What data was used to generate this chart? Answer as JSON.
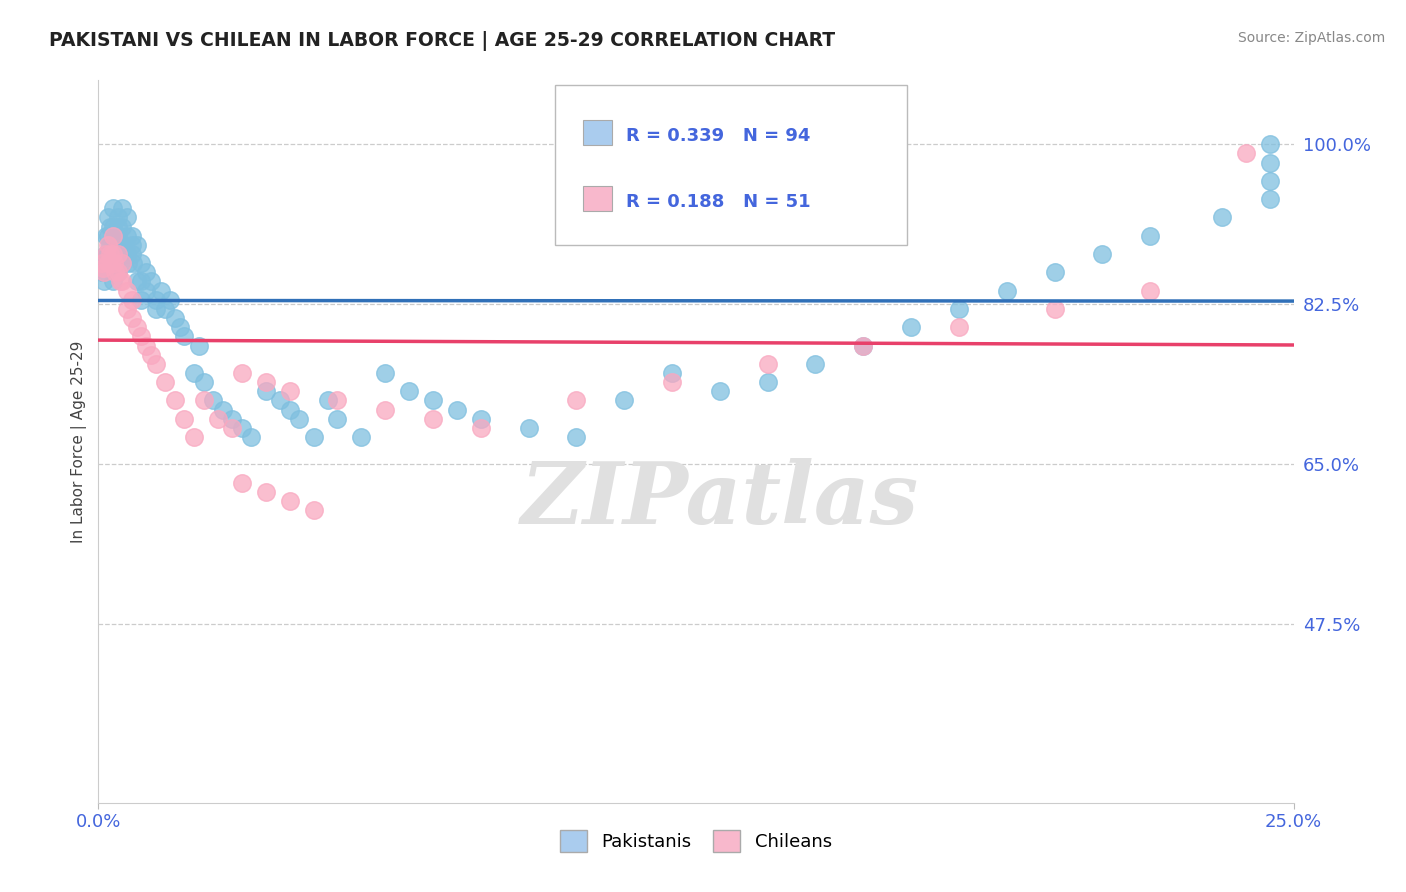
{
  "title": "PAKISTANI VS CHILEAN IN LABOR FORCE | AGE 25-29 CORRELATION CHART",
  "source": "Source: ZipAtlas.com",
  "ylabel": "In Labor Force | Age 25-29",
  "r_pakistani": 0.339,
  "n_pakistani": 94,
  "r_chilean": 0.188,
  "n_chilean": 51,
  "color_pakistani": "#7fbfdf",
  "color_chilean": "#f9a8c0",
  "color_line_pakistani": "#3070b8",
  "color_line_chilean": "#e8406a",
  "title_color": "#222222",
  "tick_color": "#4466dd",
  "source_color": "#888888",
  "xlim": [
    0.0,
    0.25
  ],
  "ylim": [
    0.28,
    1.07
  ],
  "ytick_values": [
    0.475,
    0.65,
    0.825,
    1.0
  ],
  "ytick_labels": [
    "47.5%",
    "65.0%",
    "82.5%",
    "100.0%"
  ],
  "xtick_values": [
    0.0,
    0.25
  ],
  "xtick_labels": [
    "0.0%",
    "25.0%"
  ],
  "background_color": "#ffffff",
  "grid_color": "#cccccc",
  "legend_bg": "#ffffff",
  "legend_edge": "#cccccc",
  "legend_pak_color": "#aaccee",
  "legend_chi_color": "#f8b8cc",
  "watermark_text": "ZIPatlas",
  "watermark_color": "#e0e0e0",
  "pakistani_x": [
    0.0008,
    0.001,
    0.0012,
    0.0015,
    0.0015,
    0.0018,
    0.002,
    0.002,
    0.002,
    0.0022,
    0.0025,
    0.0025,
    0.003,
    0.003,
    0.003,
    0.003,
    0.003,
    0.0032,
    0.0035,
    0.004,
    0.004,
    0.004,
    0.004,
    0.0042,
    0.0045,
    0.005,
    0.005,
    0.005,
    0.005,
    0.0055,
    0.006,
    0.006,
    0.006,
    0.0062,
    0.007,
    0.007,
    0.007,
    0.0072,
    0.008,
    0.008,
    0.009,
    0.009,
    0.009,
    0.01,
    0.01,
    0.011,
    0.012,
    0.012,
    0.013,
    0.014,
    0.015,
    0.016,
    0.017,
    0.018,
    0.02,
    0.021,
    0.022,
    0.024,
    0.026,
    0.028,
    0.03,
    0.032,
    0.035,
    0.038,
    0.04,
    0.042,
    0.045,
    0.048,
    0.05,
    0.055,
    0.06,
    0.065,
    0.07,
    0.075,
    0.08,
    0.09,
    0.1,
    0.11,
    0.12,
    0.13,
    0.14,
    0.15,
    0.16,
    0.17,
    0.18,
    0.19,
    0.2,
    0.21,
    0.22,
    0.235,
    0.245,
    0.245,
    0.245,
    0.245
  ],
  "pakistani_y": [
    0.86,
    0.875,
    0.85,
    0.9,
    0.88,
    0.87,
    0.92,
    0.9,
    0.88,
    0.87,
    0.91,
    0.89,
    0.93,
    0.91,
    0.89,
    0.87,
    0.85,
    0.88,
    0.9,
    0.92,
    0.9,
    0.88,
    0.86,
    0.91,
    0.89,
    0.93,
    0.91,
    0.89,
    0.87,
    0.88,
    0.92,
    0.9,
    0.88,
    0.87,
    0.89,
    0.9,
    0.88,
    0.87,
    0.89,
    0.85,
    0.87,
    0.85,
    0.83,
    0.86,
    0.84,
    0.85,
    0.83,
    0.82,
    0.84,
    0.82,
    0.83,
    0.81,
    0.8,
    0.79,
    0.75,
    0.78,
    0.74,
    0.72,
    0.71,
    0.7,
    0.69,
    0.68,
    0.73,
    0.72,
    0.71,
    0.7,
    0.68,
    0.72,
    0.7,
    0.68,
    0.75,
    0.73,
    0.72,
    0.71,
    0.7,
    0.69,
    0.68,
    0.72,
    0.75,
    0.73,
    0.74,
    0.76,
    0.78,
    0.8,
    0.82,
    0.84,
    0.86,
    0.88,
    0.9,
    0.92,
    0.94,
    0.96,
    0.98,
    1.0
  ],
  "chilean_x": [
    0.0008,
    0.001,
    0.0012,
    0.0015,
    0.002,
    0.002,
    0.0025,
    0.003,
    0.003,
    0.0032,
    0.0035,
    0.004,
    0.004,
    0.0045,
    0.005,
    0.005,
    0.006,
    0.006,
    0.007,
    0.007,
    0.008,
    0.009,
    0.01,
    0.011,
    0.012,
    0.014,
    0.016,
    0.018,
    0.02,
    0.022,
    0.025,
    0.028,
    0.03,
    0.035,
    0.04,
    0.05,
    0.06,
    0.07,
    0.08,
    0.1,
    0.12,
    0.14,
    0.16,
    0.18,
    0.2,
    0.22,
    0.03,
    0.035,
    0.04,
    0.045,
    0.24
  ],
  "chilean_y": [
    0.87,
    0.865,
    0.86,
    0.88,
    0.89,
    0.87,
    0.88,
    0.9,
    0.88,
    0.87,
    0.86,
    0.88,
    0.86,
    0.85,
    0.87,
    0.85,
    0.84,
    0.82,
    0.83,
    0.81,
    0.8,
    0.79,
    0.78,
    0.77,
    0.76,
    0.74,
    0.72,
    0.7,
    0.68,
    0.72,
    0.7,
    0.69,
    0.75,
    0.74,
    0.73,
    0.72,
    0.71,
    0.7,
    0.69,
    0.72,
    0.74,
    0.76,
    0.78,
    0.8,
    0.82,
    0.84,
    0.63,
    0.62,
    0.61,
    0.6,
    0.99
  ]
}
